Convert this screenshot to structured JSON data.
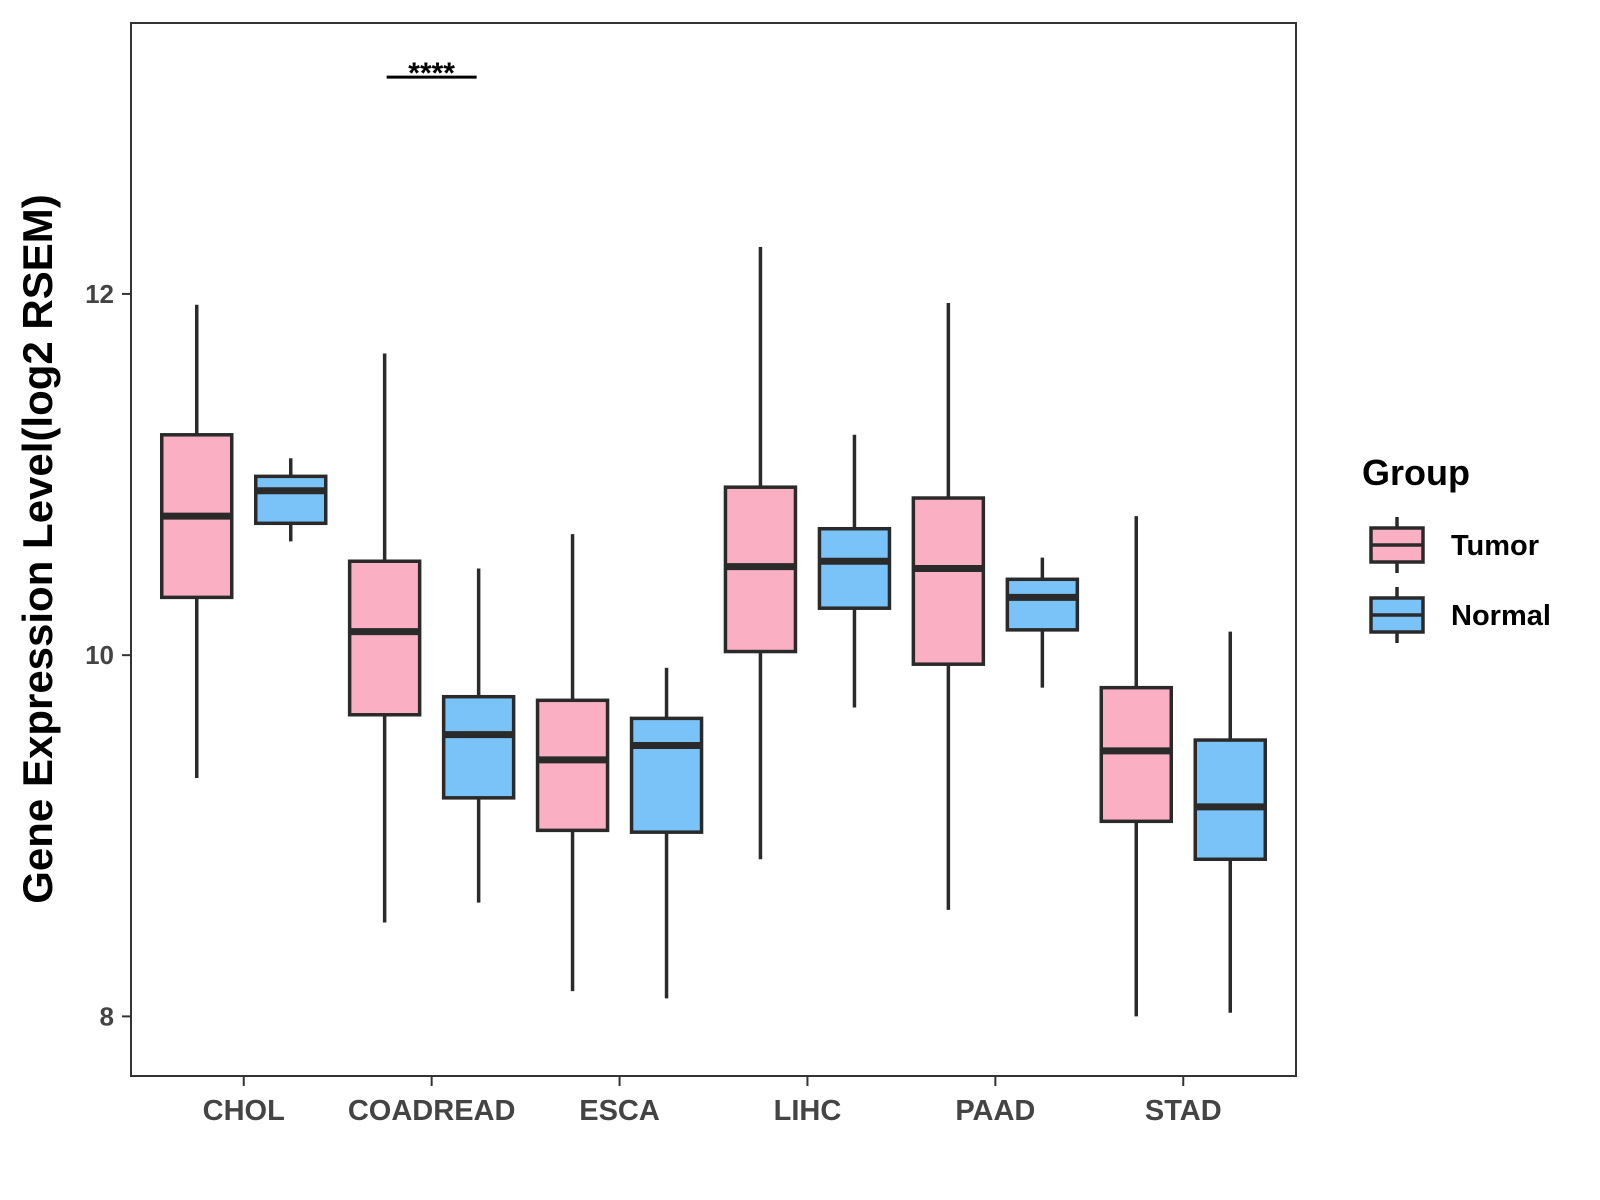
{
  "chart_data": {
    "type": "boxplot",
    "title": "",
    "xlabel": "",
    "ylabel": "Gene Expression Level(log2 RSEM)",
    "ylim": [
      7.67,
      13.5
    ],
    "yticks": [
      8,
      10,
      12
    ],
    "grid": false,
    "categories": [
      "CHOL",
      "COADREAD",
      "ESCA",
      "LIHC",
      "PAAD",
      "STAD"
    ],
    "legend": {
      "title": "Group",
      "position": "right",
      "entries": [
        "Tumor",
        "Normal"
      ]
    },
    "series": [
      {
        "name": "Tumor",
        "color": "#FAB0C2",
        "boxes": [
          {
            "category": "CHOL",
            "min": 9.32,
            "q1": 10.32,
            "median": 10.77,
            "q3": 11.22,
            "max": 11.94
          },
          {
            "category": "COADREAD",
            "min": 8.52,
            "q1": 9.67,
            "median": 10.13,
            "q3": 10.52,
            "max": 11.67
          },
          {
            "category": "ESCA",
            "min": 8.14,
            "q1": 9.03,
            "median": 9.42,
            "q3": 9.75,
            "max": 10.67
          },
          {
            "category": "LIHC",
            "min": 8.87,
            "q1": 10.02,
            "median": 10.49,
            "q3": 10.93,
            "max": 12.26
          },
          {
            "category": "PAAD",
            "min": 8.59,
            "q1": 9.95,
            "median": 10.48,
            "q3": 10.87,
            "max": 11.95
          },
          {
            "category": "STAD",
            "min": 8.0,
            "q1": 9.08,
            "median": 9.47,
            "q3": 9.82,
            "max": 10.77
          }
        ]
      },
      {
        "name": "Normal",
        "color": "#7AC3F8",
        "boxes": [
          {
            "category": "CHOL",
            "min": 10.63,
            "q1": 10.73,
            "median": 10.91,
            "q3": 10.99,
            "max": 11.09
          },
          {
            "category": "COADREAD",
            "min": 8.63,
            "q1": 9.21,
            "median": 9.56,
            "q3": 9.77,
            "max": 10.48
          },
          {
            "category": "ESCA",
            "min": 8.1,
            "q1": 9.02,
            "median": 9.5,
            "q3": 9.65,
            "max": 9.93
          },
          {
            "category": "LIHC",
            "min": 9.71,
            "q1": 10.26,
            "median": 10.52,
            "q3": 10.7,
            "max": 11.22
          },
          {
            "category": "PAAD",
            "min": 9.82,
            "q1": 10.14,
            "median": 10.32,
            "q3": 10.42,
            "max": 10.54
          },
          {
            "category": "STAD",
            "min": 8.02,
            "q1": 8.87,
            "median": 9.16,
            "q3": 9.53,
            "max": 10.13
          }
        ]
      }
    ],
    "annotations": [
      {
        "category": "COADREAD",
        "text": "****",
        "y": 13.2
      }
    ]
  }
}
